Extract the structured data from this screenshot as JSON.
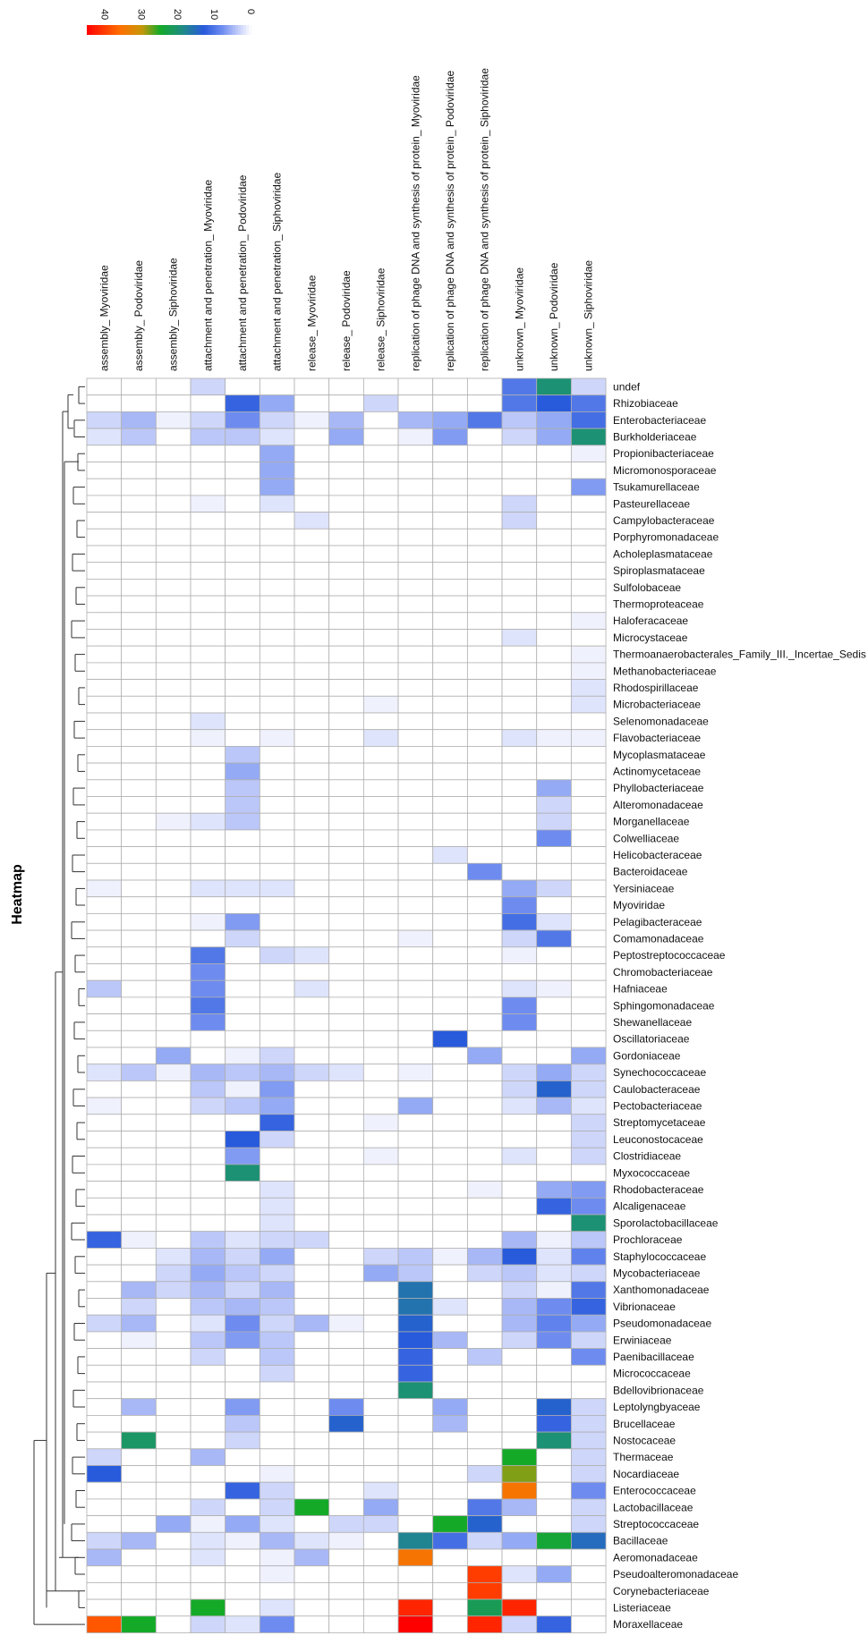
{
  "chart_data": {
    "type": "heatmap",
    "title": "Heatmap",
    "scale": {
      "ticks": [
        "40",
        "30",
        "20",
        "10",
        "0"
      ],
      "min": 0,
      "max": 45
    },
    "columns": [
      "assembly_ Myoviridae",
      "assembly_ Podoviridae",
      "assembly_ Siphoviridae",
      "attachment and penetration_ Myoviridae",
      "attachment and penetration_ Podoviridae",
      "attachment and penetration_ Siphoviridae",
      "release_ Myoviridae",
      "release_ Podoviridae",
      "release_ Siphoviridae",
      "replication of phage DNA and synthesis of protein_ Myoviridae",
      "replication of phage DNA and synthesis of protein_ Podoviridae",
      "replication of phage DNA and synthesis of protein_ Siphoviridae",
      "unknown_ Myoviridae",
      "unknown_ Podoviridae",
      "unknown_ Siphoviridae"
    ],
    "rows": [
      "undef",
      "Rhizobiaceae",
      "Enterobacteriaceae",
      "Burkholderiaceae",
      "Propionibacteriaceae",
      "Micromonosporaceae",
      "Tsukamurellaceae",
      "Pasteurellaceae",
      "Campylobacteraceae",
      "Porphyromonadaceae",
      "Acholeplasmataceae",
      "Spiroplasmataceae",
      "Sulfolobaceae",
      "Thermoproteaceae",
      "Haloferacaceae",
      "Microcystaceae",
      "Thermoanaerobacterales_Family_III._Incertae_Sedis",
      "Methanobacteriaceae",
      "Rhodospirillaceae",
      "Microbacteriaceae",
      "Selenomonadaceae",
      "Flavobacteriaceae",
      "Mycoplasmataceae",
      "Actinomycetaceae",
      "Phyllobacteriaceae",
      "Alteromonadaceae",
      "Morganellaceae",
      "Colwelliaceae",
      "Helicobacteraceae",
      "Bacteroidaceae",
      "Yersiniaceae",
      "Myoviridae",
      "Pelagibacteraceae",
      "Comamonadaceae",
      "Peptostreptococcaceae",
      "Chromobacteriaceae",
      "Hafniaceae",
      "Sphingomonadaceae",
      "Shewanellaceae",
      "Oscillatoriaceae",
      "Gordoniaceae",
      "Synechococcaceae",
      "Caulobacteraceae",
      "Pectobacteriaceae",
      "Streptomycetaceae",
      "Leuconostocaceae",
      "Clostridiaceae",
      "Myxococcaceae",
      "Rhodobacteraceae",
      "Alcaligenaceae",
      "Sporolactobacillaceae",
      "Prochloraceae",
      "Staphylococcaceae",
      "Mycobacteriaceae",
      "Xanthomonadaceae",
      "Vibrionaceae",
      "Pseudomonadaceae",
      "Erwiniaceae",
      "Paenibacillaceae",
      "Micrococcaceae",
      "Bdellovibrionaceae",
      "Leptolyngbyaceae",
      "Brucellaceae",
      "Nostocaceae",
      "Thermaceae",
      "Nocardiaceae",
      "Enterococcaceae",
      "Lactobacillaceae",
      "Streptococcaceae",
      "Bacillaceae",
      "Aeromonadaceae",
      "Pseudoalteromonadaceae",
      "Corynebacteriaceae",
      "Listeriaceae",
      "Moraxellaceae"
    ],
    "values": [
      [
        0,
        0,
        0,
        3,
        0,
        0,
        0,
        0,
        0,
        0,
        0,
        0,
        10,
        20,
        3
      ],
      [
        0,
        0,
        0,
        0,
        12,
        6,
        0,
        0,
        3,
        0,
        0,
        0,
        10,
        13,
        10
      ],
      [
        3,
        5,
        1,
        3,
        8,
        3,
        1,
        5,
        0,
        5,
        6,
        10,
        4,
        6,
        11
      ],
      [
        2,
        4,
        0,
        4,
        4,
        2,
        0,
        6,
        0,
        1,
        7,
        0,
        3,
        6,
        20
      ],
      [
        0,
        0,
        0,
        0,
        0,
        6,
        0,
        0,
        0,
        0,
        0,
        0,
        0,
        0,
        1
      ],
      [
        0,
        0,
        0,
        0,
        0,
        6,
        0,
        0,
        0,
        0,
        0,
        0,
        0,
        0,
        0
      ],
      [
        0,
        0,
        0,
        0,
        0,
        6,
        0,
        0,
        0,
        0,
        0,
        0,
        0,
        0,
        7
      ],
      [
        0,
        0,
        0,
        1,
        0,
        2,
        0,
        0,
        0,
        0,
        0,
        0,
        3,
        0,
        0
      ],
      [
        0,
        0,
        0,
        0,
        0,
        0,
        2,
        0,
        0,
        0,
        0,
        0,
        3,
        0,
        0
      ],
      [
        0,
        0,
        0,
        0,
        0,
        0,
        0,
        0,
        0,
        0,
        0,
        0,
        0,
        0,
        0
      ],
      [
        0,
        0,
        0,
        0,
        0,
        0,
        0,
        0,
        0,
        0,
        0,
        0,
        0,
        0,
        0
      ],
      [
        0,
        0,
        0,
        0,
        0,
        0,
        0,
        0,
        0,
        0,
        0,
        0,
        0,
        0,
        0
      ],
      [
        0,
        0,
        0,
        0,
        0,
        0,
        0,
        0,
        0,
        0,
        0,
        0,
        0,
        0,
        0
      ],
      [
        0,
        0,
        0,
        0,
        0,
        0,
        0,
        0,
        0,
        0,
        0,
        0,
        0,
        0,
        0
      ],
      [
        0,
        0,
        0,
        0,
        0,
        0,
        0,
        0,
        0,
        0,
        0,
        0,
        0,
        0,
        1
      ],
      [
        0,
        0,
        0,
        0,
        0,
        0,
        0,
        0,
        0,
        0,
        0,
        0,
        2,
        0,
        0
      ],
      [
        0,
        0,
        0,
        0,
        0,
        0,
        0,
        0,
        0,
        0,
        0,
        0,
        0,
        0,
        1
      ],
      [
        0,
        0,
        0,
        0,
        0,
        0,
        0,
        0,
        0,
        0,
        0,
        0,
        0,
        0,
        1
      ],
      [
        0,
        0,
        0,
        0,
        0,
        0,
        0,
        0,
        0,
        0,
        0,
        0,
        0,
        0,
        2
      ],
      [
        0,
        0,
        0,
        0,
        0,
        0,
        0,
        0,
        1,
        0,
        0,
        0,
        0,
        0,
        2
      ],
      [
        0,
        0,
        0,
        2,
        0,
        0,
        0,
        0,
        0,
        0,
        0,
        0,
        0,
        0,
        0
      ],
      [
        0,
        0,
        0,
        1,
        0,
        1,
        0,
        0,
        2,
        0,
        0,
        0,
        2,
        1,
        1
      ],
      [
        0,
        0,
        0,
        0,
        4,
        0,
        0,
        0,
        0,
        0,
        0,
        0,
        0,
        0,
        0
      ],
      [
        0,
        0,
        0,
        0,
        6,
        0,
        0,
        0,
        0,
        0,
        0,
        0,
        0,
        0,
        0
      ],
      [
        0,
        0,
        0,
        0,
        4,
        0,
        0,
        0,
        0,
        0,
        0,
        0,
        0,
        6,
        0
      ],
      [
        0,
        0,
        0,
        0,
        4,
        0,
        0,
        0,
        0,
        0,
        0,
        0,
        0,
        3,
        0
      ],
      [
        0,
        0,
        1,
        2,
        4,
        0,
        0,
        0,
        0,
        0,
        0,
        0,
        0,
        3,
        0
      ],
      [
        0,
        0,
        0,
        0,
        0,
        0,
        0,
        0,
        0,
        0,
        0,
        0,
        0,
        8,
        0
      ],
      [
        0,
        0,
        0,
        0,
        0,
        0,
        0,
        0,
        0,
        0,
        2,
        0,
        0,
        0,
        0
      ],
      [
        0,
        0,
        0,
        0,
        0,
        0,
        0,
        0,
        0,
        0,
        0,
        8,
        0,
        0,
        0
      ],
      [
        1,
        0,
        0,
        2,
        2,
        2,
        0,
        0,
        0,
        0,
        0,
        0,
        6,
        3,
        0
      ],
      [
        0,
        0,
        0,
        0,
        0,
        0,
        0,
        0,
        0,
        0,
        0,
        0,
        8,
        0,
        0
      ],
      [
        0,
        0,
        0,
        1,
        7,
        0,
        0,
        0,
        0,
        0,
        0,
        0,
        11,
        2,
        0
      ],
      [
        0,
        0,
        0,
        0,
        3,
        0,
        0,
        0,
        0,
        1,
        0,
        0,
        3,
        10,
        0
      ],
      [
        0,
        0,
        0,
        10,
        0,
        3,
        2,
        0,
        0,
        0,
        0,
        0,
        1,
        0,
        0
      ],
      [
        0,
        0,
        0,
        8,
        0,
        0,
        0,
        0,
        0,
        0,
        0,
        0,
        0,
        0,
        0
      ],
      [
        4,
        0,
        0,
        8,
        0,
        0,
        2,
        0,
        0,
        0,
        0,
        0,
        2,
        1,
        0
      ],
      [
        0,
        0,
        0,
        10,
        0,
        0,
        0,
        0,
        0,
        0,
        0,
        0,
        8,
        0,
        0
      ],
      [
        0,
        0,
        0,
        8,
        0,
        0,
        0,
        0,
        0,
        0,
        0,
        0,
        8,
        0,
        0
      ],
      [
        0,
        0,
        0,
        0,
        0,
        0,
        0,
        0,
        0,
        0,
        13,
        0,
        0,
        0,
        0
      ],
      [
        0,
        0,
        6,
        0,
        1,
        3,
        0,
        0,
        0,
        0,
        0,
        6,
        0,
        0,
        6
      ],
      [
        2,
        4,
        1,
        5,
        4,
        5,
        3,
        2,
        0,
        1,
        0,
        0,
        3,
        6,
        3
      ],
      [
        0,
        0,
        0,
        4,
        1,
        7,
        0,
        0,
        0,
        0,
        0,
        0,
        3,
        14,
        3
      ],
      [
        1,
        0,
        0,
        3,
        4,
        6,
        0,
        0,
        0,
        6,
        0,
        0,
        2,
        5,
        2
      ],
      [
        0,
        0,
        0,
        0,
        0,
        12,
        0,
        0,
        1,
        0,
        0,
        0,
        0,
        0,
        3
      ],
      [
        0,
        0,
        0,
        0,
        13,
        3,
        0,
        0,
        0,
        0,
        0,
        0,
        0,
        0,
        3
      ],
      [
        0,
        0,
        0,
        0,
        7,
        0,
        0,
        0,
        1,
        0,
        0,
        0,
        2,
        0,
        3
      ],
      [
        0,
        0,
        0,
        0,
        20,
        0,
        0,
        0,
        0,
        0,
        0,
        0,
        0,
        0,
        0
      ],
      [
        0,
        0,
        0,
        0,
        0,
        2,
        0,
        0,
        0,
        0,
        0,
        1,
        0,
        6,
        7
      ],
      [
        0,
        0,
        0,
        0,
        0,
        2,
        0,
        0,
        0,
        0,
        0,
        0,
        0,
        12,
        8
      ],
      [
        0,
        0,
        0,
        0,
        0,
        2,
        0,
        0,
        0,
        0,
        0,
        0,
        0,
        0,
        20
      ],
      [
        12,
        1,
        0,
        4,
        2,
        3,
        3,
        0,
        0,
        0,
        0,
        0,
        5,
        1,
        4
      ],
      [
        0,
        0,
        2,
        5,
        3,
        6,
        0,
        0,
        3,
        4,
        1,
        5,
        13,
        2,
        9
      ],
      [
        0,
        0,
        3,
        6,
        4,
        3,
        0,
        0,
        6,
        4,
        0,
        3,
        4,
        2,
        3
      ],
      [
        0,
        5,
        3,
        5,
        3,
        5,
        0,
        0,
        0,
        16,
        0,
        0,
        3,
        1,
        10
      ],
      [
        0,
        3,
        0,
        4,
        5,
        4,
        0,
        0,
        0,
        16,
        2,
        0,
        5,
        8,
        12
      ],
      [
        3,
        5,
        0,
        2,
        8,
        3,
        5,
        1,
        0,
        14,
        0,
        0,
        5,
        9,
        6
      ],
      [
        0,
        1,
        0,
        4,
        7,
        4,
        0,
        0,
        0,
        13,
        5,
        0,
        3,
        8,
        3
      ],
      [
        0,
        0,
        0,
        3,
        0,
        4,
        0,
        0,
        0,
        12,
        0,
        4,
        0,
        0,
        8
      ],
      [
        0,
        0,
        0,
        0,
        0,
        3,
        0,
        0,
        0,
        12,
        0,
        0,
        0,
        0,
        0
      ],
      [
        0,
        0,
        0,
        0,
        0,
        0,
        0,
        0,
        0,
        20,
        0,
        0,
        0,
        0,
        0
      ],
      [
        0,
        5,
        0,
        0,
        7,
        0,
        0,
        8,
        0,
        0,
        6,
        0,
        0,
        14,
        3
      ],
      [
        0,
        0,
        0,
        0,
        4,
        0,
        0,
        14,
        0,
        0,
        5,
        0,
        0,
        12,
        3
      ],
      [
        0,
        21,
        0,
        0,
        3,
        0,
        0,
        0,
        0,
        0,
        0,
        0,
        0,
        20,
        3
      ],
      [
        3,
        0,
        0,
        5,
        0,
        0,
        0,
        0,
        0,
        0,
        0,
        0,
        25,
        0,
        3
      ],
      [
        13,
        0,
        0,
        0,
        0,
        1,
        0,
        0,
        0,
        0,
        0,
        3,
        28,
        0,
        3
      ],
      [
        0,
        0,
        0,
        0,
        12,
        3,
        0,
        0,
        2,
        0,
        0,
        0,
        35,
        0,
        8
      ],
      [
        0,
        0,
        0,
        3,
        0,
        3,
        25,
        0,
        6,
        0,
        0,
        10,
        5,
        0,
        3
      ],
      [
        0,
        0,
        6,
        1,
        6,
        2,
        0,
        3,
        3,
        0,
        25,
        14,
        0,
        0,
        3
      ],
      [
        3,
        5,
        0,
        2,
        1,
        5,
        2,
        1,
        0,
        18,
        11,
        3,
        6,
        24,
        15
      ],
      [
        5,
        0,
        0,
        2,
        0,
        1,
        5,
        0,
        0,
        35,
        0,
        0,
        0,
        0,
        0
      ],
      [
        0,
        0,
        0,
        0,
        0,
        1,
        0,
        0,
        0,
        0,
        0,
        40,
        2,
        6,
        0
      ],
      [
        0,
        0,
        0,
        0,
        0,
        0,
        0,
        0,
        0,
        0,
        0,
        40,
        0,
        0,
        0
      ],
      [
        0,
        0,
        0,
        25,
        0,
        2,
        0,
        0,
        0,
        42,
        0,
        22,
        42,
        0,
        0
      ],
      [
        38,
        25,
        0,
        3,
        2,
        8,
        0,
        0,
        0,
        45,
        0,
        42,
        3,
        12,
        0
      ]
    ]
  }
}
